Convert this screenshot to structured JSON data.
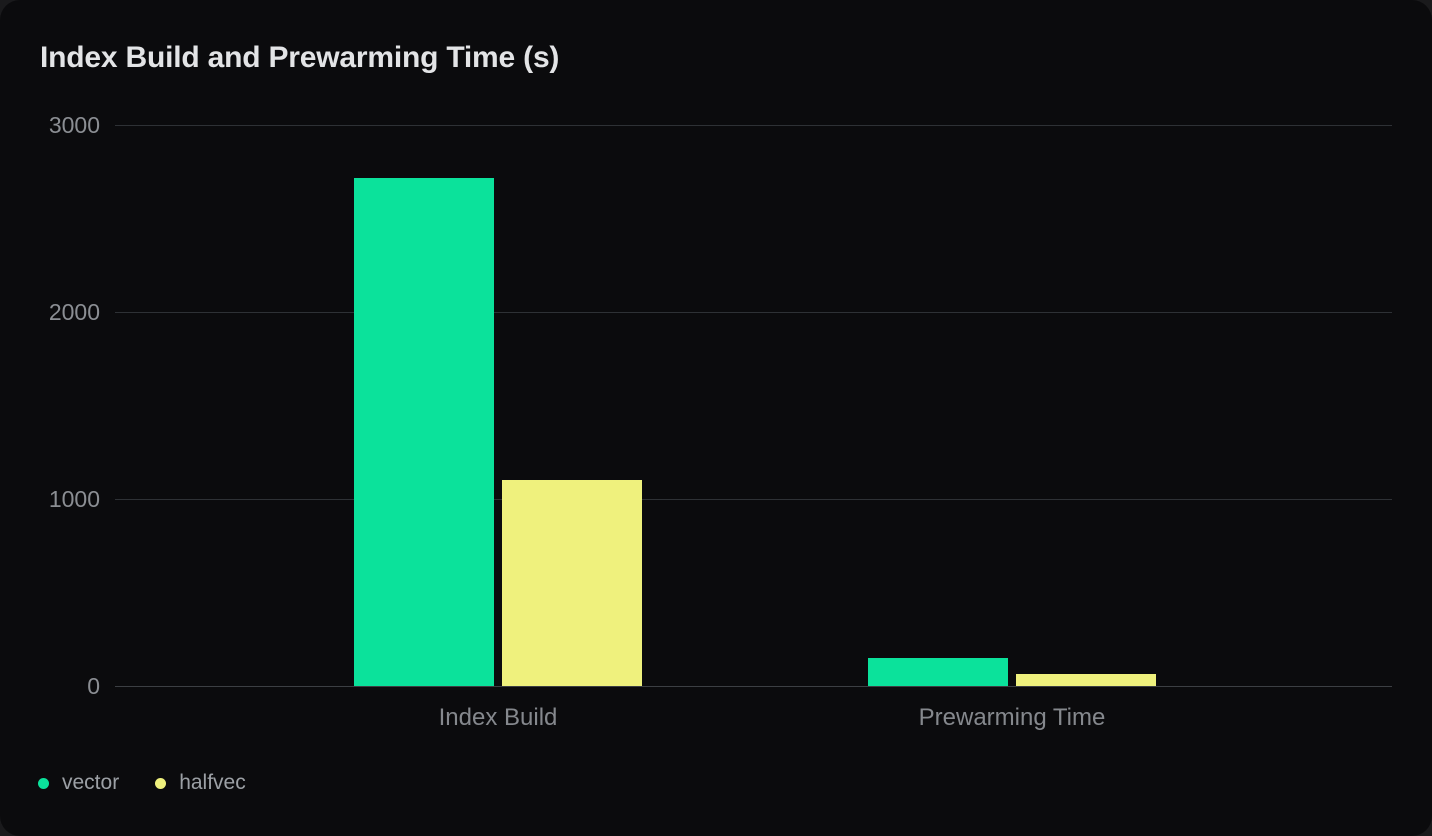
{
  "page": {
    "background": "#1a1a1c",
    "card_background": "#0b0b0d"
  },
  "chart_data": {
    "type": "bar",
    "title": "Index Build and Prewarming Time (s)",
    "categories": [
      "Index Build",
      "Prewarming Time"
    ],
    "series": [
      {
        "name": "vector",
        "color": "#0be29b",
        "values": [
          2715,
          150
        ]
      },
      {
        "name": "halfvec",
        "color": "#eff17d",
        "values": [
          1100,
          64
        ]
      }
    ],
    "ylim": [
      0,
      3000
    ],
    "yticks": [
      0,
      1000,
      2000,
      3000
    ],
    "grid": true,
    "legend_position": "bottom-left",
    "colors": {
      "title_text": "#e3e4e6",
      "tick_text": "#8b8e93",
      "category_text": "#85888d",
      "legend_text": "#9ca0a5",
      "gridline": "#2e3135"
    }
  }
}
